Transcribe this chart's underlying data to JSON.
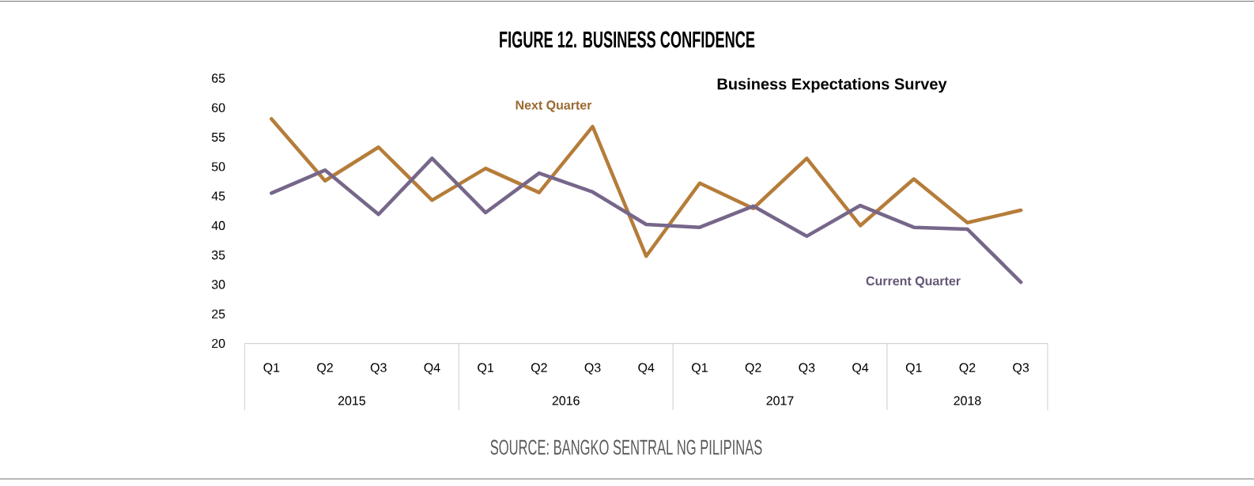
{
  "chart_data": {
    "type": "line",
    "title": "FIGURE 12. BUSINESS CONFIDENCE",
    "subtitle": "Business Expectations Survey",
    "categories": [
      "Q1",
      "Q2",
      "Q3",
      "Q4",
      "Q1",
      "Q2",
      "Q3",
      "Q4",
      "Q1",
      "Q2",
      "Q3",
      "Q4",
      "Q1",
      "Q2",
      "Q3"
    ],
    "series": [
      {
        "name": "Next Quarter",
        "color": "#b57d3a",
        "values": [
          58.1,
          47.6,
          53.3,
          44.3,
          49.7,
          45.6,
          56.8,
          34.8,
          47.2,
          42.9,
          51.4,
          40.0,
          47.9,
          40.5,
          42.6
        ]
      },
      {
        "name": "Current Quarter",
        "color": "#76678a",
        "values": [
          45.5,
          49.4,
          41.9,
          51.4,
          42.2,
          48.9,
          45.7,
          40.2,
          39.7,
          43.3,
          38.2,
          43.4,
          39.7,
          39.4,
          30.4
        ]
      }
    ],
    "ylim": [
      20,
      65
    ],
    "yticks": [
      20,
      25,
      30,
      35,
      40,
      45,
      50,
      55,
      60,
      65
    ],
    "annotations": [
      "SOURCE: BANGKO SENTRAL NG PILIPINAS",
      "2015",
      "2016",
      "2017",
      "2018"
    ]
  }
}
